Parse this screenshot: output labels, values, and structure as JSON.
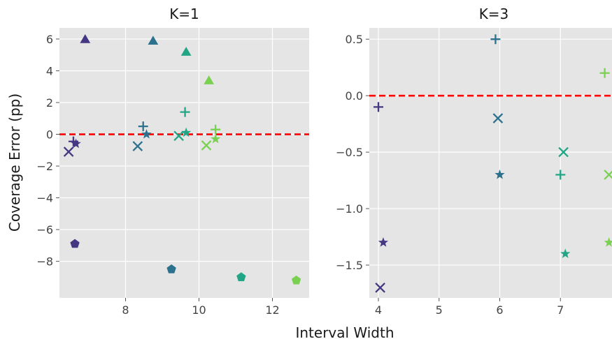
{
  "colors": {
    "panel_bg": "#e5e5e5",
    "grid": "#ffffff",
    "reference_line": "#ff0000",
    "palette": [
      "#453781",
      "#2c718e",
      "#21a685",
      "#7ad151"
    ]
  },
  "figure": {
    "ylabel": "Coverage Error (pp)",
    "xlabel": "Interval Width"
  },
  "chart_data": [
    {
      "type": "scatter",
      "title": "K=1",
      "xlim": [
        6.2,
        13.0
      ],
      "ylim": [
        -10.3,
        6.7
      ],
      "xticks": [
        8,
        10,
        12
      ],
      "xtick_labels": [
        "8",
        "10",
        "12"
      ],
      "yticks": [
        6,
        4,
        2,
        0,
        -2,
        -4,
        -6,
        -8
      ],
      "ytick_labels": [
        "6",
        "4",
        "2",
        "0",
        "−2",
        "−4",
        "−6",
        "−8"
      ],
      "grid": true,
      "reference_line_y": 0,
      "points": [
        {
          "x": 6.45,
          "y": -1.1,
          "marker": "x",
          "color": "#453781"
        },
        {
          "x": 6.65,
          "y": -0.6,
          "marker": "star",
          "color": "#453781"
        },
        {
          "x": 6.58,
          "y": -0.45,
          "marker": "plus",
          "color": "#453781"
        },
        {
          "x": 6.62,
          "y": -6.9,
          "marker": "pentagon",
          "color": "#453781"
        },
        {
          "x": 6.9,
          "y": 6.0,
          "marker": "triangle",
          "color": "#453781"
        },
        {
          "x": 8.33,
          "y": -0.75,
          "marker": "x",
          "color": "#2c718e"
        },
        {
          "x": 8.48,
          "y": 0.5,
          "marker": "plus",
          "color": "#2c718e"
        },
        {
          "x": 8.57,
          "y": 0.0,
          "marker": "star",
          "color": "#2c718e"
        },
        {
          "x": 8.75,
          "y": 5.9,
          "marker": "triangle",
          "color": "#2c718e"
        },
        {
          "x": 9.25,
          "y": -8.5,
          "marker": "pentagon",
          "color": "#2c718e"
        },
        {
          "x": 9.45,
          "y": -0.1,
          "marker": "x",
          "color": "#21a685"
        },
        {
          "x": 9.62,
          "y": 1.4,
          "marker": "plus",
          "color": "#21a685"
        },
        {
          "x": 9.65,
          "y": 0.1,
          "marker": "star",
          "color": "#21a685"
        },
        {
          "x": 9.65,
          "y": 5.2,
          "marker": "triangle",
          "color": "#21a685"
        },
        {
          "x": 11.15,
          "y": -9.0,
          "marker": "pentagon",
          "color": "#21a685"
        },
        {
          "x": 10.2,
          "y": -0.7,
          "marker": "x",
          "color": "#7ad151"
        },
        {
          "x": 10.45,
          "y": -0.3,
          "marker": "star",
          "color": "#7ad151"
        },
        {
          "x": 10.45,
          "y": 0.3,
          "marker": "plus",
          "color": "#7ad151"
        },
        {
          "x": 10.27,
          "y": 3.4,
          "marker": "triangle",
          "color": "#7ad151"
        },
        {
          "x": 12.65,
          "y": -9.2,
          "marker": "pentagon",
          "color": "#7ad151"
        }
      ]
    },
    {
      "type": "scatter",
      "title": "K=3",
      "xlim": [
        3.85,
        7.85
      ],
      "ylim": [
        -1.79,
        0.6
      ],
      "xticks": [
        4,
        5,
        6,
        7
      ],
      "xtick_labels": [
        "4",
        "5",
        "6",
        "7"
      ],
      "yticks": [
        0.5,
        0.0,
        -0.5,
        -1.0,
        -1.5
      ],
      "ytick_labels": [
        "0.5",
        "0.0",
        "−0.5",
        "−1.0",
        "−1.5"
      ],
      "grid": true,
      "reference_line_y": 0,
      "points": [
        {
          "x": 4.0,
          "y": -0.1,
          "marker": "plus",
          "color": "#453781"
        },
        {
          "x": 4.08,
          "y": -1.3,
          "marker": "star",
          "color": "#453781"
        },
        {
          "x": 4.03,
          "y": -1.7,
          "marker": "x",
          "color": "#453781"
        },
        {
          "x": 5.93,
          "y": 0.5,
          "marker": "plus",
          "color": "#2c718e"
        },
        {
          "x": 5.97,
          "y": -0.2,
          "marker": "x",
          "color": "#2c718e"
        },
        {
          "x": 6.0,
          "y": -0.7,
          "marker": "star",
          "color": "#2c718e"
        },
        {
          "x": 7.05,
          "y": -0.5,
          "marker": "x",
          "color": "#21a685"
        },
        {
          "x": 7.0,
          "y": -0.7,
          "marker": "plus",
          "color": "#21a685"
        },
        {
          "x": 7.08,
          "y": -1.4,
          "marker": "star",
          "color": "#21a685"
        },
        {
          "x": 7.73,
          "y": 0.2,
          "marker": "plus",
          "color": "#7ad151"
        },
        {
          "x": 7.8,
          "y": -0.7,
          "marker": "x",
          "color": "#7ad151"
        },
        {
          "x": 7.8,
          "y": -1.3,
          "marker": "star",
          "color": "#7ad151"
        }
      ]
    }
  ]
}
